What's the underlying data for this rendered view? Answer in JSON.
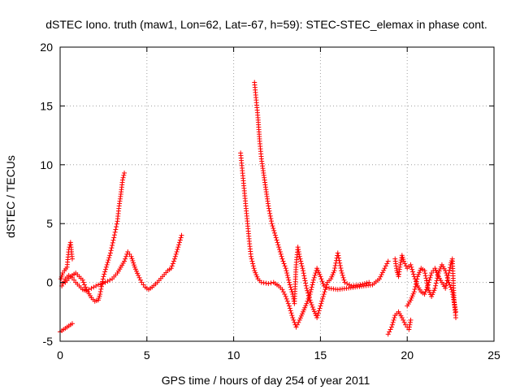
{
  "chart_data": {
    "type": "scatter",
    "title": "dSTEC Iono. truth (maw1, Lon=62, Lat=-67, h=59): STEC-STEC_elemax in phase cont.",
    "xlabel": "GPS time / hours of day 254 of year 2011",
    "ylabel": "dSTEC  / TECUs",
    "xlim": [
      0,
      25
    ],
    "ylim": [
      -5,
      20
    ],
    "x_ticks": [
      "0",
      "5",
      "10",
      "15",
      "20",
      "25"
    ],
    "y_ticks": [
      "-5",
      "0",
      "5",
      "10",
      "15",
      "20"
    ],
    "grid": true,
    "marker": "+",
    "colors": {
      "series": "#ff0000",
      "grid": "#a0a0a0",
      "axis": "#000000"
    },
    "series": [
      {
        "segments": [
          [
            [
              0.0,
              -4.2
            ],
            [
              0.1,
              -4.1
            ],
            [
              0.3,
              -3.9
            ],
            [
              0.5,
              -3.7
            ],
            [
              0.6,
              -3.6
            ],
            [
              0.7,
              -3.5
            ]
          ],
          [
            [
              0.05,
              0.3
            ],
            [
              0.15,
              0.8
            ],
            [
              0.25,
              1.0
            ],
            [
              0.4,
              1.3
            ],
            [
              0.5,
              2.8
            ],
            [
              0.6,
              3.4
            ],
            [
              0.7,
              2.0
            ]
          ],
          [
            [
              0.1,
              -0.3
            ],
            [
              0.3,
              0.3
            ],
            [
              0.5,
              0.6
            ],
            [
              0.7,
              0.4
            ],
            [
              0.9,
              0.0
            ],
            [
              1.1,
              -0.3
            ],
            [
              1.3,
              -0.6
            ],
            [
              1.5,
              -0.7
            ],
            [
              1.8,
              -0.5
            ],
            [
              2.2,
              -0.2
            ],
            [
              2.6,
              0.0
            ],
            [
              3.0,
              0.3
            ],
            [
              3.3,
              0.8
            ],
            [
              3.5,
              1.3
            ],
            [
              3.7,
              1.8
            ],
            [
              3.9,
              2.6
            ],
            [
              4.1,
              2.2
            ],
            [
              4.3,
              1.3
            ],
            [
              4.5,
              0.6
            ],
            [
              4.7,
              0.0
            ],
            [
              4.9,
              -0.4
            ],
            [
              5.1,
              -0.6
            ],
            [
              5.3,
              -0.4
            ],
            [
              5.6,
              0.0
            ],
            [
              5.9,
              0.5
            ],
            [
              6.2,
              1.0
            ],
            [
              6.4,
              1.2
            ],
            [
              6.6,
              2.0
            ],
            [
              6.8,
              3.0
            ],
            [
              7.0,
              4.0
            ]
          ],
          [
            [
              0.3,
              0.0
            ],
            [
              0.6,
              0.5
            ],
            [
              0.9,
              0.8
            ],
            [
              1.1,
              0.5
            ],
            [
              1.3,
              0.2
            ],
            [
              1.4,
              -0.2
            ],
            [
              1.6,
              -0.8
            ],
            [
              1.8,
              -1.3
            ],
            [
              2.0,
              -1.6
            ],
            [
              2.2,
              -1.5
            ],
            [
              2.3,
              -1.0
            ],
            [
              2.5,
              0.5
            ],
            [
              2.7,
              1.5
            ],
            [
              2.9,
              2.5
            ],
            [
              3.1,
              3.8
            ],
            [
              3.2,
              4.5
            ],
            [
              3.3,
              5.2
            ],
            [
              3.4,
              6.5
            ],
            [
              3.5,
              7.5
            ],
            [
              3.6,
              8.7
            ],
            [
              3.7,
              9.3
            ]
          ],
          [
            [
              10.4,
              11.0
            ],
            [
              10.5,
              9.5
            ],
            [
              10.6,
              8.0
            ],
            [
              10.7,
              6.5
            ],
            [
              10.8,
              5.0
            ],
            [
              10.9,
              3.5
            ],
            [
              11.0,
              2.2
            ],
            [
              11.2,
              1.0
            ],
            [
              11.4,
              0.3
            ],
            [
              11.6,
              0.0
            ],
            [
              12.0,
              -0.1
            ],
            [
              12.3,
              0.0
            ],
            [
              12.6,
              -0.3
            ],
            [
              12.8,
              -0.6
            ],
            [
              13.0,
              -1.2
            ],
            [
              13.2,
              -2.0
            ],
            [
              13.4,
              -3.0
            ],
            [
              13.6,
              -3.8
            ],
            [
              13.8,
              -3.2
            ],
            [
              14.0,
              -2.5
            ],
            [
              14.2,
              -1.8
            ],
            [
              14.4,
              -1.0
            ],
            [
              14.6,
              0.2
            ],
            [
              14.8,
              1.2
            ],
            [
              15.0,
              0.5
            ],
            [
              15.2,
              -0.3
            ],
            [
              15.5,
              -0.5
            ],
            [
              16.0,
              -0.6
            ],
            [
              16.5,
              -0.5
            ],
            [
              17.0,
              -0.4
            ],
            [
              17.5,
              -0.3
            ],
            [
              18.0,
              -0.2
            ],
            [
              18.4,
              0.3
            ],
            [
              18.7,
              1.2
            ],
            [
              18.9,
              1.8
            ]
          ],
          [
            [
              11.2,
              17.0
            ],
            [
              11.3,
              15.5
            ],
            [
              11.4,
              14.0
            ],
            [
              11.5,
              12.0
            ],
            [
              11.6,
              10.5
            ],
            [
              11.7,
              9.5
            ],
            [
              11.8,
              8.5
            ],
            [
              11.9,
              7.5
            ],
            [
              12.0,
              6.5
            ],
            [
              12.2,
              5.0
            ],
            [
              12.4,
              4.0
            ],
            [
              12.6,
              3.0
            ],
            [
              12.8,
              2.0
            ],
            [
              13.0,
              1.2
            ],
            [
              13.2,
              0.0
            ],
            [
              13.4,
              -1.0
            ],
            [
              13.5,
              -1.8
            ],
            [
              13.6,
              1.5
            ],
            [
              13.7,
              3.0
            ],
            [
              13.8,
              2.2
            ],
            [
              14.0,
              1.0
            ],
            [
              14.2,
              -0.5
            ],
            [
              14.4,
              -1.5
            ],
            [
              14.6,
              -2.3
            ],
            [
              14.8,
              -3.0
            ],
            [
              15.0,
              -2.0
            ],
            [
              15.2,
              -1.0
            ],
            [
              15.4,
              0.0
            ],
            [
              15.6,
              0.3
            ],
            [
              15.8,
              1.0
            ],
            [
              16.0,
              2.5
            ],
            [
              16.2,
              1.0
            ],
            [
              16.4,
              0.0
            ],
            [
              16.8,
              -0.3
            ],
            [
              17.3,
              -0.2
            ],
            [
              17.8,
              0.0
            ]
          ],
          [
            [
              18.9,
              -4.4
            ],
            [
              19.1,
              -3.8
            ],
            [
              19.3,
              -2.8
            ],
            [
              19.5,
              -2.5
            ],
            [
              19.7,
              -3.0
            ],
            [
              19.9,
              -3.6
            ],
            [
              20.1,
              -4.0
            ],
            [
              20.2,
              -3.2
            ]
          ],
          [
            [
              19.3,
              2.0
            ],
            [
              19.4,
              1.0
            ],
            [
              19.5,
              0.5
            ],
            [
              19.6,
              1.5
            ],
            [
              19.7,
              2.3
            ],
            [
              19.8,
              1.8
            ],
            [
              20.0,
              1.2
            ],
            [
              20.2,
              1.5
            ],
            [
              20.4,
              0.5
            ],
            [
              20.6,
              -0.3
            ],
            [
              20.8,
              -0.8
            ],
            [
              21.0,
              -1.0
            ],
            [
              21.2,
              -0.2
            ],
            [
              21.4,
              0.8
            ],
            [
              21.6,
              1.2
            ],
            [
              21.8,
              0.5
            ],
            [
              22.0,
              0.0
            ],
            [
              22.2,
              -0.5
            ],
            [
              22.4,
              0.8
            ],
            [
              22.5,
              1.5
            ],
            [
              22.6,
              2.0
            ],
            [
              22.7,
              -1.5
            ],
            [
              22.8,
              -3.0
            ]
          ],
          [
            [
              20.0,
              -2.0
            ],
            [
              20.2,
              -1.5
            ],
            [
              20.4,
              -0.8
            ],
            [
              20.6,
              0.5
            ],
            [
              20.8,
              1.2
            ],
            [
              21.0,
              1.0
            ],
            [
              21.2,
              -0.5
            ],
            [
              21.4,
              -1.2
            ],
            [
              21.6,
              -0.5
            ],
            [
              21.8,
              0.8
            ],
            [
              22.0,
              1.5
            ],
            [
              22.2,
              1.0
            ],
            [
              22.4,
              0.0
            ],
            [
              22.6,
              -0.8
            ],
            [
              22.8,
              -2.5
            ]
          ]
        ]
      }
    ]
  }
}
